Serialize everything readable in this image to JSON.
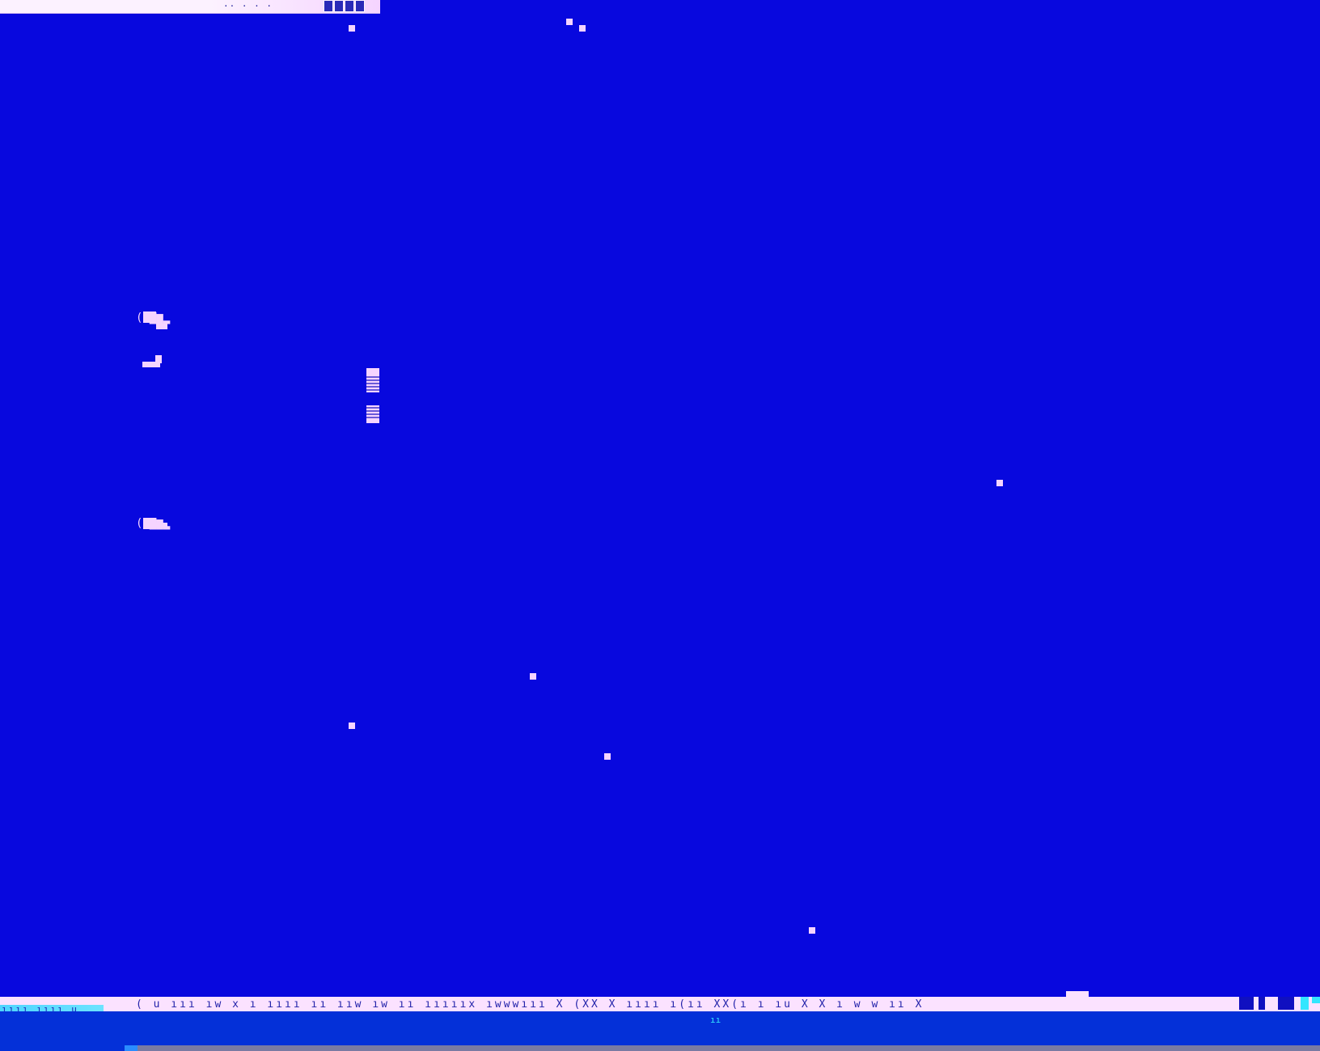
{
  "top_bar": {
    "text": "··  ·  · ·"
  },
  "left_labels": {
    "upper": "((▇▆▂",
    "middle": "▁▟",
    "lower": "((▇▆▂"
  },
  "center_glyphs": {
    "upper": "▇",
    "lower": "▇"
  },
  "status_bar": {
    "text": "( u   ııı   ıw  x  ı  ıııı  ıı  ııw  ıw  ıı  ıııııx  ıwwwııı  X  (XX  X  ıııı  ı(ıı  XX(ı  ı  ıu  X     X  ı  w   w  ıı  X"
  },
  "status_left": {
    "text": "ıııı  ıııı   u"
  },
  "taskbar": {
    "marker": "ıı"
  },
  "colors": {
    "background": "#0808de",
    "speck": "#f5d4ff",
    "status_bar": "#fbe2ff",
    "taskbar": "#0430d8",
    "accent_cyan": "#33e6ff"
  }
}
